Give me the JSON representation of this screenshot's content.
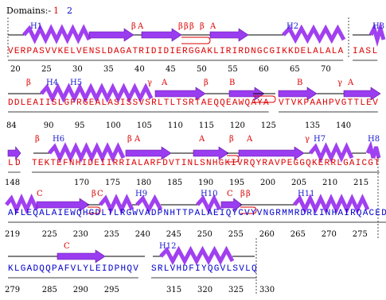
{
  "legend": {
    "label": "Domains:-",
    "items": [
      {
        "label": "1",
        "color": "#dd0000"
      },
      {
        "label": "2",
        "color": "#0000cc"
      }
    ]
  },
  "rows": [
    {
      "segments": [
        {
          "domain": 0,
          "sequence": "VERPASVVKELVENSLDAGATRIDIDIERGGAKLIRIRDNGCGIKKDELALALA",
          "ticks": [
            20,
            25,
            30,
            35,
            40,
            45,
            50,
            55,
            60,
            65,
            70
          ]
        },
        {
          "domain": 0,
          "sequence": "IASL",
          "ticks": []
        }
      ],
      "labels": [
        "H1",
        "β",
        "A",
        "β",
        "β",
        "β",
        "β",
        "A",
        "H2",
        "H3"
      ]
    },
    {
      "segments": [
        {
          "domain": 0,
          "sequence": "DDLEAIISLGFRGEALASISSVSRLTLTSRTAEQQEAWQAYA",
          "ticks": [
            84,
            90,
            95,
            100,
            105,
            110,
            115,
            120,
            125
          ]
        },
        {
          "domain": 0,
          "sequence": "VTVKPAAHPVGTTLEV",
          "ticks": [
            135,
            140
          ]
        }
      ],
      "labels": [
        "β",
        "H4",
        "H5",
        "γ",
        "A",
        "β",
        "B",
        "B",
        "γ",
        "A"
      ]
    },
    {
      "segments": [
        {
          "domain": 0,
          "sequence": "LD",
          "ticks": [
            148
          ]
        },
        {
          "domain": 0,
          "sequence": "TEKTEFNHIDEIIRRIALARFDVTINLSNHGKIVRQYRAVPEGGQKERRLGAICGT",
          "ticks": [
            170,
            175,
            180,
            185,
            190,
            195,
            200,
            205,
            210,
            215
          ]
        }
      ],
      "labels": [
        "β",
        "H6",
        "β",
        "A",
        "A",
        "β",
        "A",
        "γ",
        "H7",
        "H8"
      ]
    },
    {
      "segments": [
        {
          "domain": 1,
          "sequence": "AFLEQALAIEWQHGDLTLRGWVADPNHTTPALAEIQYCVYVNGRMMRDRLINHAIRQACED",
          "ticks": [
            219,
            225,
            230,
            235,
            240,
            245,
            250,
            255,
            260,
            265,
            270,
            275
          ]
        }
      ],
      "labels": [
        "C",
        "C",
        "β",
        "H9",
        "H10",
        "C",
        "β",
        "β",
        "H11"
      ]
    },
    {
      "segments": [
        {
          "domain": 1,
          "sequence": "KLGADQQPAFVLYLEIDPHQV",
          "ticks": [
            279,
            285,
            290,
            295
          ]
        },
        {
          "domain": 1,
          "sequence": "SRLVHDFIYQGVLSVLQ",
          "ticks": [
            315,
            320,
            325,
            330
          ]
        }
      ],
      "labels": [
        "C",
        "H12"
      ]
    }
  ]
}
